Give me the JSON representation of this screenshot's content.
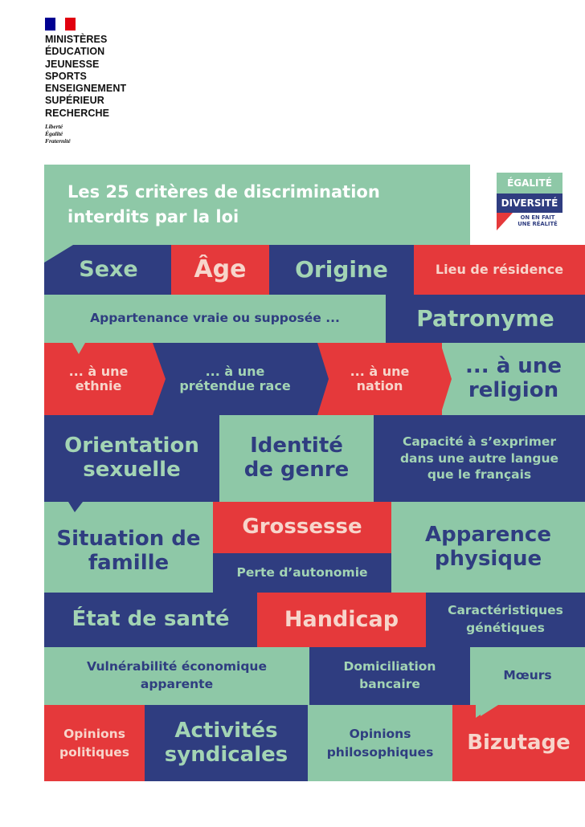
{
  "header": {
    "flag_colors": [
      "#000091",
      "#ffffff",
      "#e1000f"
    ],
    "ministry_lines": [
      "MINISTÈRES",
      "ÉDUCATION",
      "JEUNESSE",
      "SPORTS",
      "ENSEIGNEMENT",
      "SUPÉRIEUR",
      "RECHERCHE"
    ],
    "motto_lines": [
      "Liberté",
      "Égalité",
      "Fraternité"
    ]
  },
  "title": "Les 25 critères de discrimination interdits par la loi",
  "badge": {
    "line1": "ÉGALITÉ",
    "line2": "DIVERSITÉ",
    "line3": "ON EN FAIT",
    "line4": "UNE RÉALITÉ"
  },
  "colors": {
    "blue": "#2f3d80",
    "green": "#8ec8a7",
    "red": "#e5393b"
  },
  "criteria": {
    "sexe": "Sexe",
    "age": "Âge",
    "origine": "Origine",
    "lieu_residence": "Lieu de résidence",
    "appartenance": "Appartenance vraie ou supposée ...",
    "patronyme": "Patronyme",
    "ethnie": "... à une ethnie",
    "race": "... à une prétendue race",
    "nation": "... à une nation",
    "religion": "... à une religion",
    "orientation": "Orientation sexuelle",
    "identite": "Identité de genre",
    "langue": "Capacité à s’exprimer dans une autre langue que le français",
    "situation": "Situation de famille",
    "grossesse": "Grossesse",
    "autonomie": "Perte d’autonomie",
    "apparence": "Apparence physique",
    "sante": "État de santé",
    "handicap": "Handicap",
    "genetique": "Caractéristiques génétiques",
    "vulnerabilite": "Vulnérabilité économique apparente",
    "domiciliation": "Domiciliation bancaire",
    "moeurs": "Mœurs",
    "opinions_politiques": "Opinions politiques",
    "syndicales": "Activités syndicales",
    "philosophiques": "Opinions philosophiques",
    "bizutage": "Bizutage"
  }
}
